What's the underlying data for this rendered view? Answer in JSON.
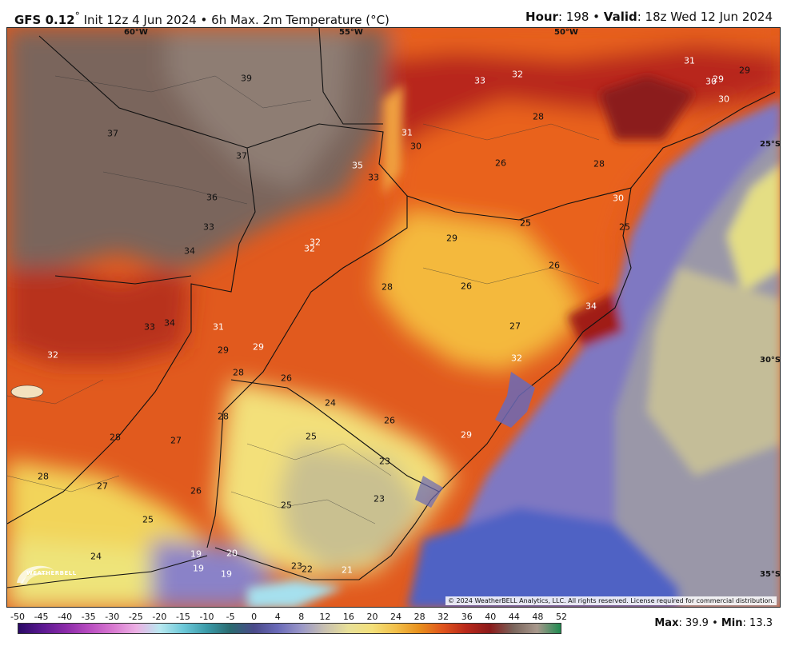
{
  "header": {
    "model": "GFS 0.12",
    "degree": "°",
    "init": " Init 12z 4 Jun 2024 • 6h Max. 2m Temperature (°C)",
    "hour_label": "Hour",
    "hour_value": ": 198 • ",
    "valid_label": "Valid",
    "valid_value": ": 18z Wed 12 Jun 2024"
  },
  "map": {
    "coords": [
      "60°W",
      "55°W",
      "50°W",
      "25°S",
      "30°S",
      "35°S"
    ],
    "copyright": "© 2024 WeatherBELL Analytics, LLC. All rights reserved. License required for commercial distribution.",
    "logo": "WEATHERBELL",
    "labels": [
      "39",
      "37",
      "37",
      "36",
      "33",
      "34",
      "33",
      "34",
      "31",
      "32",
      "29",
      "29",
      "28",
      "28",
      "27",
      "28",
      "27",
      "26",
      "25",
      "24",
      "19",
      "19",
      "19",
      "20",
      "33",
      "35",
      "31",
      "30",
      "32",
      "32",
      "29",
      "28",
      "26",
      "25",
      "24",
      "26",
      "26",
      "28",
      "25",
      "23",
      "23",
      "25",
      "23",
      "22",
      "21",
      "33",
      "32",
      "28",
      "26",
      "28",
      "25",
      "26",
      "27",
      "32",
      "29",
      "34",
      "30",
      "25",
      "31",
      "30",
      "29",
      "29",
      "30"
    ],
    "colors": {
      "hot": "#8b1a1a",
      "warm": "#e8541c",
      "mild": "#f5c04a",
      "cool": "#eae67a",
      "sea": "#6a6ab8",
      "cold": "#9b8fd0",
      "brown": "#7a655c"
    }
  },
  "colorbar": {
    "ticks": [
      "-50",
      "-45",
      "-40",
      "-35",
      "-30",
      "-25",
      "-20",
      "-15",
      "-10",
      "-5",
      "0",
      "4",
      "8",
      "12",
      "16",
      "20",
      "24",
      "28",
      "32",
      "36",
      "40",
      "44",
      "48",
      "52"
    ]
  },
  "stats": {
    "max_label": "Max",
    "max_value": ": 39.9 • ",
    "min_label": "Min",
    "min_value": ": 13.3"
  }
}
